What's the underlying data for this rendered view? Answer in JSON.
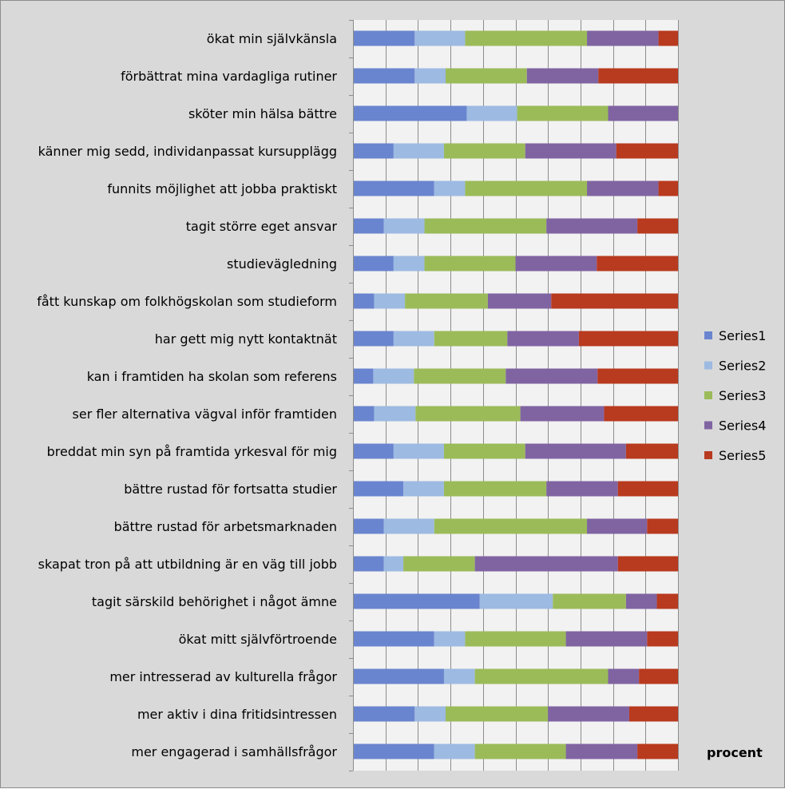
{
  "chart_data": {
    "type": "bar",
    "stacked": "percent",
    "orientation": "horizontal",
    "categories": [
      "ökat min självkänsla",
      "förbättrat mina vardagliga rutiner",
      "sköter min hälsa bättre",
      "känner mig sedd, individanpassat kursupplägg",
      "funnits möjlighet att jobba praktiskt",
      "tagit större eget ansvar",
      "studievägledning",
      "fått kunskap om folkhögskolan som studieform",
      "har gett mig nytt kontaktnät",
      "kan i framtiden ha skolan som referens",
      "ser fler alternativa vägval inför framtiden",
      "breddat min syn på framtida yrkesval för mig",
      "bättre rustad för fortsatta studier",
      "bättre rustad för arbetsmarknaden",
      "skapat tron på att utbildning är en väg till jobb",
      "tagit särskild behörighet i något ämne",
      "ökat mitt självförtroende",
      "mer intresserad av kulturella frågor",
      "mer aktiv i dina fritidsintressen",
      "mer engagerad i samhällsfrågor"
    ],
    "series": [
      {
        "name": "Series1",
        "color": "#6a85cf",
        "values": [
          19,
          19,
          35,
          12.5,
          25,
          9.5,
          12.5,
          6.5,
          12.5,
          6.25,
          6.5,
          12.5,
          15.5,
          9.5,
          9.5,
          39,
          25,
          28,
          19,
          25
        ]
      },
      {
        "name": "Series2",
        "color": "#9dbae2",
        "values": [
          15.5,
          9.5,
          15.5,
          15.5,
          9.5,
          12.5,
          9.5,
          9.5,
          12.5,
          12.5,
          12.75,
          15.5,
          12.5,
          15.5,
          6,
          22.5,
          9.5,
          9.5,
          9.5,
          12.5
        ]
      },
      {
        "name": "Series3",
        "color": "#9bbb59",
        "values": [
          37.5,
          25,
          28,
          25,
          37.5,
          37.5,
          28,
          25.5,
          22.5,
          28.25,
          32.25,
          25,
          31.5,
          47,
          22,
          22.5,
          31,
          41,
          31.5,
          28
        ]
      },
      {
        "name": "Series4",
        "color": "#8064a2",
        "values": [
          22,
          22,
          21.5,
          28,
          22,
          28,
          25,
          19.5,
          22,
          28.25,
          25.75,
          31,
          22,
          18.5,
          44,
          9.5,
          25,
          9.5,
          25,
          22
        ]
      },
      {
        "name": "Series5",
        "color": "#b83a1f",
        "values": [
          6,
          24.5,
          0,
          19,
          6,
          12.5,
          25,
          39,
          30.5,
          24.75,
          22.75,
          16,
          18.5,
          9.5,
          18.5,
          6.5,
          9.5,
          12.5,
          15,
          12.5
        ]
      }
    ],
    "xlim": [
      0,
      100
    ],
    "grid": true,
    "legend": "right",
    "unit_label": "procent",
    "plot_background": "#f2f2f2",
    "chart_background": "#d9d9d9"
  }
}
